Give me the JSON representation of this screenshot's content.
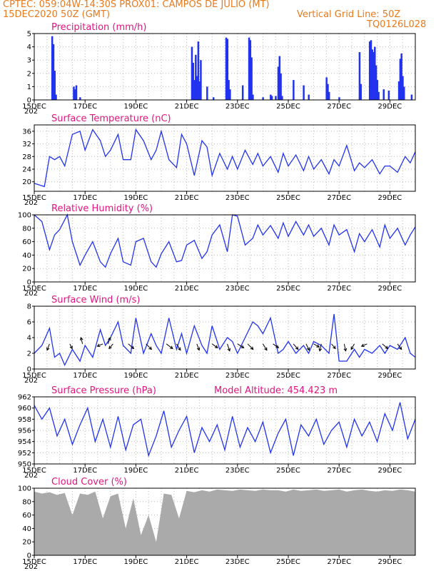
{
  "header": {
    "line1": "CPTEC:   059:04W-14:30S   PROX01: CAMPOS DE JULIO (MT)",
    "line2_left": "15DEC2020 50Z (GMT)",
    "line2_right": "Vertical Grid Line: 50Z",
    "line3_right": "TQ0126L028"
  },
  "colors": {
    "header": "#e87a1e",
    "title": "#e0157e",
    "series": "#2233ee",
    "cloud": "#aaaaaa"
  },
  "x_ticks": [
    "15DEC",
    "17DEC",
    "19DEC",
    "21DEC",
    "23DEC",
    "25DEC",
    "27DEC",
    "29DEC"
  ],
  "x_ticks_first_partial": "202",
  "chart_data": [
    {
      "type": "bar",
      "title": "Precipitation (mm/h)",
      "ylim": [
        0,
        5
      ],
      "yticks": [
        "0",
        "1",
        "2",
        "3",
        "4",
        "5"
      ],
      "x_unit": "days since 15DEC",
      "points": [
        [
          0.7,
          4.8
        ],
        [
          0.75,
          4.2
        ],
        [
          0.8,
          2.2
        ],
        [
          0.85,
          0.4
        ],
        [
          1.55,
          1.0
        ],
        [
          1.6,
          0.8
        ],
        [
          1.65,
          1.1
        ],
        [
          1.8,
          0.2
        ],
        [
          6.2,
          4.0
        ],
        [
          6.25,
          2.8
        ],
        [
          6.3,
          1.5
        ],
        [
          6.35,
          3.4
        ],
        [
          6.4,
          1.8
        ],
        [
          6.45,
          4.4
        ],
        [
          6.5,
          1.4
        ],
        [
          6.55,
          3.0
        ],
        [
          6.8,
          1.0
        ],
        [
          7.05,
          0.2
        ],
        [
          7.55,
          4.7
        ],
        [
          7.6,
          4.6
        ],
        [
          7.65,
          1.5
        ],
        [
          7.7,
          0.8
        ],
        [
          8.2,
          1.1
        ],
        [
          8.45,
          4.7
        ],
        [
          8.5,
          4.5
        ],
        [
          8.55,
          3.2
        ],
        [
          8.6,
          0.4
        ],
        [
          9.0,
          0.2
        ],
        [
          9.3,
          0.4
        ],
        [
          9.35,
          0.3
        ],
        [
          9.5,
          0.3
        ],
        [
          9.6,
          2.5
        ],
        [
          9.65,
          3.3
        ],
        [
          9.7,
          2.0
        ],
        [
          9.75,
          0.3
        ],
        [
          10.2,
          1.5
        ],
        [
          10.6,
          1.1
        ],
        [
          10.8,
          0.4
        ],
        [
          11.5,
          1.7
        ],
        [
          11.55,
          1.2
        ],
        [
          11.6,
          0.6
        ],
        [
          12.0,
          0.2
        ],
        [
          12.8,
          3.6
        ],
        [
          12.85,
          1.2
        ],
        [
          13.2,
          4.4
        ],
        [
          13.25,
          4.5
        ],
        [
          13.3,
          3.8
        ],
        [
          13.35,
          3.6
        ],
        [
          13.4,
          4.0
        ],
        [
          13.45,
          2.6
        ],
        [
          13.5,
          1.5
        ],
        [
          13.55,
          0.6
        ],
        [
          13.75,
          0.8
        ],
        [
          13.95,
          0.7
        ],
        [
          14.35,
          1.4
        ],
        [
          14.4,
          3.1
        ],
        [
          14.45,
          3.5
        ],
        [
          14.5,
          1.8
        ],
        [
          14.55,
          1.0
        ],
        [
          14.85,
          0.4
        ]
      ]
    },
    {
      "type": "line",
      "title": "Surface Temperature (nC)",
      "ylim": [
        17,
        38
      ],
      "yticks": [
        "20",
        "24",
        "28",
        "32",
        "36"
      ],
      "x": [
        0,
        0.4,
        0.6,
        0.8,
        1.0,
        1.2,
        1.5,
        1.8,
        2.0,
        2.3,
        2.6,
        2.8,
        3.0,
        3.3,
        3.5,
        3.8,
        4.0,
        4.3,
        4.6,
        4.8,
        5.0,
        5.3,
        5.6,
        5.8,
        6.0,
        6.3,
        6.6,
        6.8,
        7.0,
        7.3,
        7.6,
        7.8,
        8.0,
        8.3,
        8.6,
        8.8,
        9.0,
        9.3,
        9.6,
        9.8,
        10.0,
        10.3,
        10.6,
        10.8,
        11.0,
        11.3,
        11.6,
        11.8,
        12.0,
        12.3,
        12.6,
        12.8,
        13.0,
        13.3,
        13.6,
        13.8,
        14.0,
        14.3,
        14.6,
        14.8,
        15.0
      ],
      "values": [
        19.5,
        18.5,
        28,
        27,
        28,
        25,
        35,
        36,
        30,
        36.5,
        33,
        28,
        30,
        35,
        27,
        27,
        36.5,
        33,
        27,
        30,
        36,
        27,
        24.5,
        35,
        32,
        22,
        33,
        31,
        22,
        29,
        24,
        28,
        24,
        30,
        25.5,
        29,
        25,
        28,
        23,
        29,
        25,
        28.5,
        23.5,
        28,
        24,
        27,
        22.5,
        27,
        25,
        31.5,
        23.5,
        26,
        24.5,
        27,
        22.5,
        25,
        25,
        23,
        28,
        26,
        29.5
      ]
    },
    {
      "type": "line",
      "title": "Relative Humidity (%)",
      "ylim": [
        0,
        100
      ],
      "yticks": [
        "0",
        "20",
        "40",
        "60",
        "80",
        "100"
      ],
      "x": [
        0,
        0.3,
        0.6,
        0.8,
        1.0,
        1.3,
        1.5,
        1.8,
        2.0,
        2.3,
        2.6,
        2.8,
        3.0,
        3.3,
        3.5,
        3.8,
        4.0,
        4.3,
        4.6,
        4.8,
        5.0,
        5.3,
        5.6,
        5.8,
        6.0,
        6.3,
        6.6,
        6.8,
        7.0,
        7.3,
        7.6,
        7.8,
        8.0,
        8.3,
        8.6,
        8.8,
        9.0,
        9.3,
        9.6,
        9.8,
        10.0,
        10.3,
        10.6,
        10.8,
        11.0,
        11.3,
        11.6,
        11.8,
        12.0,
        12.3,
        12.6,
        12.8,
        13.0,
        13.3,
        13.6,
        13.8,
        14.0,
        14.3,
        14.6,
        14.8,
        15.0
      ],
      "values": [
        100,
        90,
        48,
        70,
        78,
        100,
        60,
        25,
        40,
        60,
        30,
        22,
        42,
        65,
        30,
        25,
        60,
        65,
        30,
        22,
        42,
        60,
        30,
        32,
        55,
        62,
        35,
        45,
        70,
        85,
        45,
        100,
        98,
        55,
        65,
        85,
        70,
        84,
        65,
        88,
        68,
        90,
        70,
        85,
        68,
        80,
        55,
        85,
        70,
        78,
        45,
        72,
        60,
        78,
        52,
        85,
        65,
        80,
        55,
        70,
        82
      ]
    },
    {
      "type": "line",
      "title": "Surface Wind (m/s)",
      "ylim": [
        0,
        8
      ],
      "yticks": [
        "0",
        "2",
        "4",
        "6",
        "8"
      ],
      "x": [
        0,
        0.3,
        0.6,
        0.8,
        1.0,
        1.2,
        1.5,
        1.8,
        2.0,
        2.3,
        2.6,
        2.8,
        3.0,
        3.3,
        3.5,
        3.8,
        4.0,
        4.3,
        4.6,
        4.8,
        5.0,
        5.3,
        5.6,
        5.8,
        6.0,
        6.3,
        6.6,
        6.8,
        7.0,
        7.3,
        7.6,
        7.8,
        8.0,
        8.3,
        8.6,
        8.8,
        9.0,
        9.3,
        9.6,
        9.8,
        10.0,
        10.3,
        10.6,
        10.8,
        11.0,
        11.3,
        11.6,
        11.8,
        12.0,
        12.3,
        12.6,
        12.8,
        13.0,
        13.3,
        13.6,
        13.8,
        14.0,
        14.3,
        14.6,
        14.8,
        15.0
      ],
      "values": [
        2.0,
        3.0,
        5.2,
        1.5,
        2.0,
        0.5,
        2.5,
        1.0,
        3.0,
        1.5,
        5.0,
        3.0,
        4.0,
        6.0,
        3.0,
        2.0,
        6.5,
        2.0,
        4.5,
        3.0,
        2.0,
        6.5,
        2.5,
        4.5,
        2.0,
        5.5,
        3.0,
        2.0,
        5.5,
        2.5,
        4.0,
        3.5,
        2.0,
        4.0,
        6.0,
        5.5,
        4.5,
        6.5,
        2.0,
        2.5,
        3.5,
        2.0,
        3.0,
        2.0,
        3.5,
        3.0,
        2.0,
        7.0,
        1.0,
        1.0,
        2.5,
        1.5,
        2.5,
        2.0,
        3.0,
        2.0,
        3.0,
        2.5,
        4.0,
        2.0,
        1.5
      ],
      "arrows": [
        [
          0.6,
          -0.3,
          -0.8
        ],
        [
          1.4,
          0.3,
          -0.6
        ],
        [
          1.9,
          -0.2,
          0.8
        ],
        [
          2.7,
          -0.7,
          -0.3
        ],
        [
          2.9,
          0.3,
          0.8
        ],
        [
          3.1,
          -0.5,
          -0.6
        ],
        [
          3.7,
          0.7,
          -0.6
        ],
        [
          4.4,
          0.7,
          -0.7
        ],
        [
          5.2,
          0.8,
          -0.6
        ],
        [
          5.6,
          0.5,
          -0.8
        ],
        [
          6.4,
          0.3,
          -0.8
        ],
        [
          7.0,
          0.7,
          -0.5
        ],
        [
          7.6,
          0.3,
          -0.9
        ],
        [
          8.0,
          0.8,
          -0.5
        ],
        [
          8.4,
          0.7,
          -0.7
        ],
        [
          9.0,
          0.5,
          -0.8
        ],
        [
          9.4,
          0.7,
          -0.5
        ],
        [
          10.2,
          0.6,
          -0.7
        ],
        [
          10.7,
          0.4,
          -0.8
        ],
        [
          11.0,
          0.7,
          -0.4
        ],
        [
          11.3,
          -0.2,
          -0.9
        ],
        [
          11.7,
          0.5,
          -0.6
        ],
        [
          12.2,
          0.2,
          -0.9
        ],
        [
          12.6,
          -0.4,
          -0.7
        ],
        [
          13.1,
          -0.7,
          -0.3
        ],
        [
          13.7,
          0.7,
          -0.6
        ],
        [
          14.3,
          0.5,
          -0.7
        ]
      ]
    },
    {
      "type": "line",
      "title": "Surface Pressure (hPa)",
      "ylim": [
        950,
        962
      ],
      "yticks": [
        "950",
        "952",
        "954",
        "956",
        "958",
        "960",
        "962"
      ],
      "subtitle": "Model Altitude: 454.423  m",
      "x": [
        0,
        0.3,
        0.6,
        0.9,
        1.2,
        1.5,
        1.8,
        2.1,
        2.4,
        2.7,
        3.0,
        3.3,
        3.6,
        3.9,
        4.2,
        4.5,
        4.8,
        5.1,
        5.4,
        5.7,
        6.0,
        6.3,
        6.6,
        6.9,
        7.2,
        7.5,
        7.8,
        8.1,
        8.4,
        8.7,
        9.0,
        9.3,
        9.6,
        9.9,
        10.2,
        10.5,
        10.8,
        11.1,
        11.4,
        11.7,
        12.0,
        12.3,
        12.6,
        12.9,
        13.2,
        13.5,
        13.8,
        14.1,
        14.4,
        14.7,
        15.0
      ],
      "values": [
        960.5,
        958,
        960,
        955,
        958,
        953.5,
        957,
        960,
        954,
        958,
        953,
        958.5,
        952.5,
        957,
        958,
        951.5,
        955,
        959.5,
        953,
        956,
        958.5,
        952,
        956.5,
        954,
        957,
        952.5,
        958.5,
        953,
        956.5,
        954,
        957.5,
        952,
        955.5,
        958,
        951.5,
        957,
        955,
        958,
        953.5,
        956,
        957.5,
        953,
        958,
        955,
        957.5,
        954,
        959,
        956,
        961,
        954.5,
        958
      ]
    },
    {
      "type": "area",
      "title": "Cloud Cover (%)",
      "ylim": [
        0,
        100
      ],
      "yticks": [
        "0",
        "20",
        "40",
        "60",
        "80",
        "100"
      ],
      "x": [
        0,
        0.3,
        0.6,
        0.9,
        1.2,
        1.5,
        1.8,
        2.1,
        2.4,
        2.7,
        3.0,
        3.3,
        3.6,
        3.9,
        4.2,
        4.5,
        4.8,
        5.1,
        5.4,
        5.7,
        6.0,
        6.3,
        6.6,
        6.9,
        7.2,
        7.5,
        7.8,
        8.1,
        8.4,
        8.7,
        9.0,
        9.3,
        9.6,
        9.9,
        10.2,
        10.5,
        10.8,
        11.1,
        11.4,
        11.7,
        12.0,
        12.3,
        12.6,
        12.9,
        13.2,
        13.5,
        13.8,
        14.1,
        14.4,
        14.7,
        15.0
      ],
      "values": [
        95,
        92,
        94,
        90,
        93,
        60,
        92,
        90,
        95,
        55,
        88,
        92,
        40,
        85,
        30,
        60,
        20,
        92,
        90,
        55,
        96,
        94,
        97,
        95,
        98,
        97,
        96,
        98,
        97,
        96,
        98,
        97,
        97,
        95,
        98,
        96,
        97,
        98,
        96,
        97,
        98,
        95,
        97,
        98,
        96,
        95,
        97,
        96,
        98,
        97,
        95
      ]
    }
  ]
}
